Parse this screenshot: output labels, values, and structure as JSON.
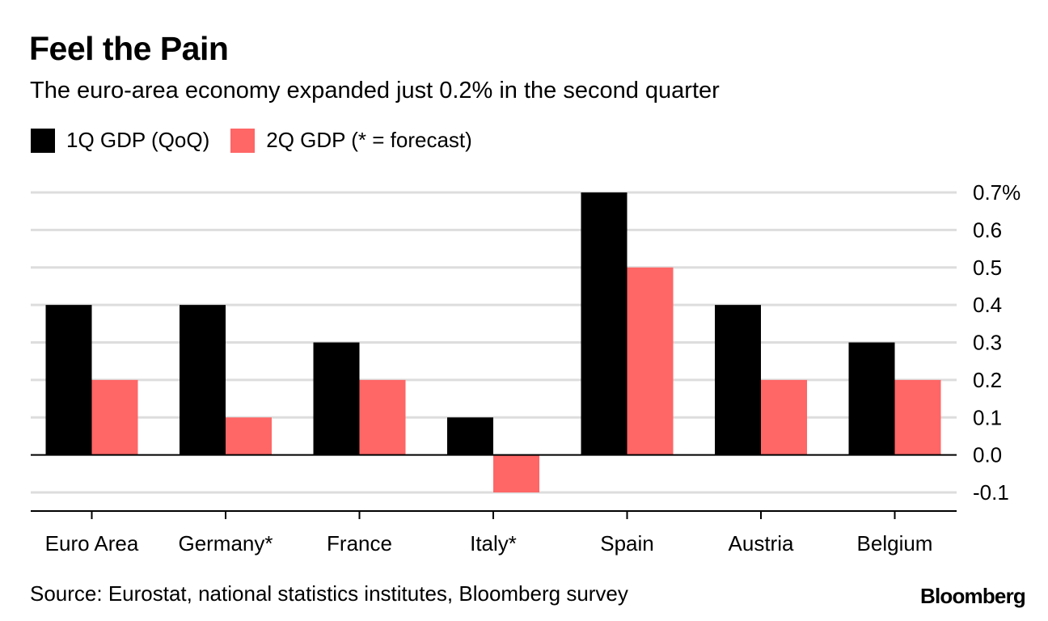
{
  "title": "Feel the Pain",
  "subtitle": "The euro-area economy expanded just 0.2% in the second quarter",
  "legend": {
    "series1": "1Q GDP (QoQ)",
    "series2": "2Q GDP (* = forecast)"
  },
  "source": "Source: Eurostat, national statistics institutes, Bloomberg survey",
  "brand": "Bloomberg",
  "colors": {
    "series1": "#000000",
    "series2": "#ff6666",
    "grid": "#dddddd",
    "axis": "#000000"
  },
  "chart_data": {
    "type": "bar",
    "title": "Feel the Pain",
    "subtitle": "The euro-area economy expanded just 0.2% in the second quarter",
    "categories": [
      "Euro Area",
      "Germany*",
      "France",
      "Italy*",
      "Spain",
      "Austria",
      "Belgium"
    ],
    "series": [
      {
        "name": "1Q GDP (QoQ)",
        "values": [
          0.4,
          0.4,
          0.3,
          0.1,
          0.7,
          0.4,
          0.3
        ]
      },
      {
        "name": "2Q GDP (* = forecast)",
        "values": [
          0.2,
          0.1,
          0.2,
          -0.1,
          0.5,
          0.2,
          0.2
        ]
      }
    ],
    "yticks": [
      0.7,
      0.6,
      0.5,
      0.4,
      0.3,
      0.2,
      0.1,
      0.0,
      -0.1
    ],
    "ytick_labels": [
      "0.7%",
      "0.6",
      "0.5",
      "0.4",
      "0.3",
      "0.2",
      "0.1",
      "0.0",
      "-0.1"
    ],
    "ylim": [
      -0.15,
      0.7
    ],
    "xlabel": "",
    "ylabel": "",
    "grid": true,
    "legend_position": "top-left",
    "y_axis_side": "right"
  }
}
